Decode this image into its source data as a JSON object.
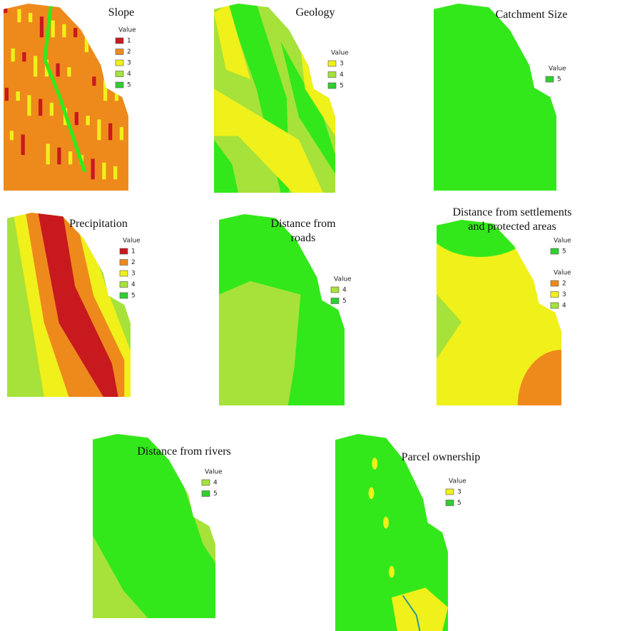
{
  "panels": [
    {
      "title": [
        "Slope"
      ],
      "legends": [
        {
          "heading": "Value",
          "items": [
            {
              "value": 1,
              "color": "#c8191e"
            },
            {
              "value": 2,
              "color": "#ee8a1c"
            },
            {
              "value": 3,
              "color": "#f0f01a"
            },
            {
              "value": 4,
              "color": "#a6e23a"
            },
            {
              "value": 5,
              "color": "#2fcf2f"
            }
          ]
        }
      ]
    },
    {
      "title": [
        "Geology"
      ],
      "legends": [
        {
          "heading": "Value",
          "items": [
            {
              "value": 3,
              "color": "#f0f01a"
            },
            {
              "value": 4,
              "color": "#a6e23a"
            },
            {
              "value": 5,
              "color": "#2fcf2f"
            }
          ]
        }
      ]
    },
    {
      "title": [
        "Catchment Size"
      ],
      "legends": [
        {
          "heading": "Value",
          "items": [
            {
              "value": 5,
              "color": "#2fcf2f"
            }
          ]
        }
      ]
    },
    {
      "title": [
        "Precipitation"
      ],
      "legends": [
        {
          "heading": "Value",
          "items": [
            {
              "value": 1,
              "color": "#c8191e"
            },
            {
              "value": 2,
              "color": "#ee8a1c"
            },
            {
              "value": 3,
              "color": "#f0f01a"
            },
            {
              "value": 4,
              "color": "#a6e23a"
            },
            {
              "value": 5,
              "color": "#2fcf2f"
            }
          ]
        }
      ]
    },
    {
      "title": [
        "Distance from",
        "roads"
      ],
      "legends": [
        {
          "heading": "Value",
          "items": [
            {
              "value": 4,
              "color": "#a6e23a"
            },
            {
              "value": 5,
              "color": "#2fcf2f"
            }
          ]
        }
      ]
    },
    {
      "title": [
        "Distance from settlements",
        "and protected areas"
      ],
      "legends": [
        {
          "heading": "Value",
          "items": [
            {
              "value": 5,
              "color": "#2fcf2f"
            }
          ]
        },
        {
          "heading": "Value",
          "items": [
            {
              "value": 2,
              "color": "#ee8a1c"
            },
            {
              "value": 3,
              "color": "#f0f01a"
            },
            {
              "value": 4,
              "color": "#a6e23a"
            }
          ]
        }
      ]
    },
    {
      "title": [
        "Distance from rivers"
      ],
      "legends": [
        {
          "heading": "Value",
          "items": [
            {
              "value": 4,
              "color": "#a6e23a"
            },
            {
              "value": 5,
              "color": "#2fcf2f"
            }
          ]
        }
      ]
    },
    {
      "title": [
        "Parcel ownership"
      ],
      "legends": [
        {
          "heading": "Value",
          "items": [
            {
              "value": 3,
              "color": "#f0f01a"
            },
            {
              "value": 5,
              "color": "#2fcf2f"
            }
          ]
        }
      ]
    }
  ]
}
